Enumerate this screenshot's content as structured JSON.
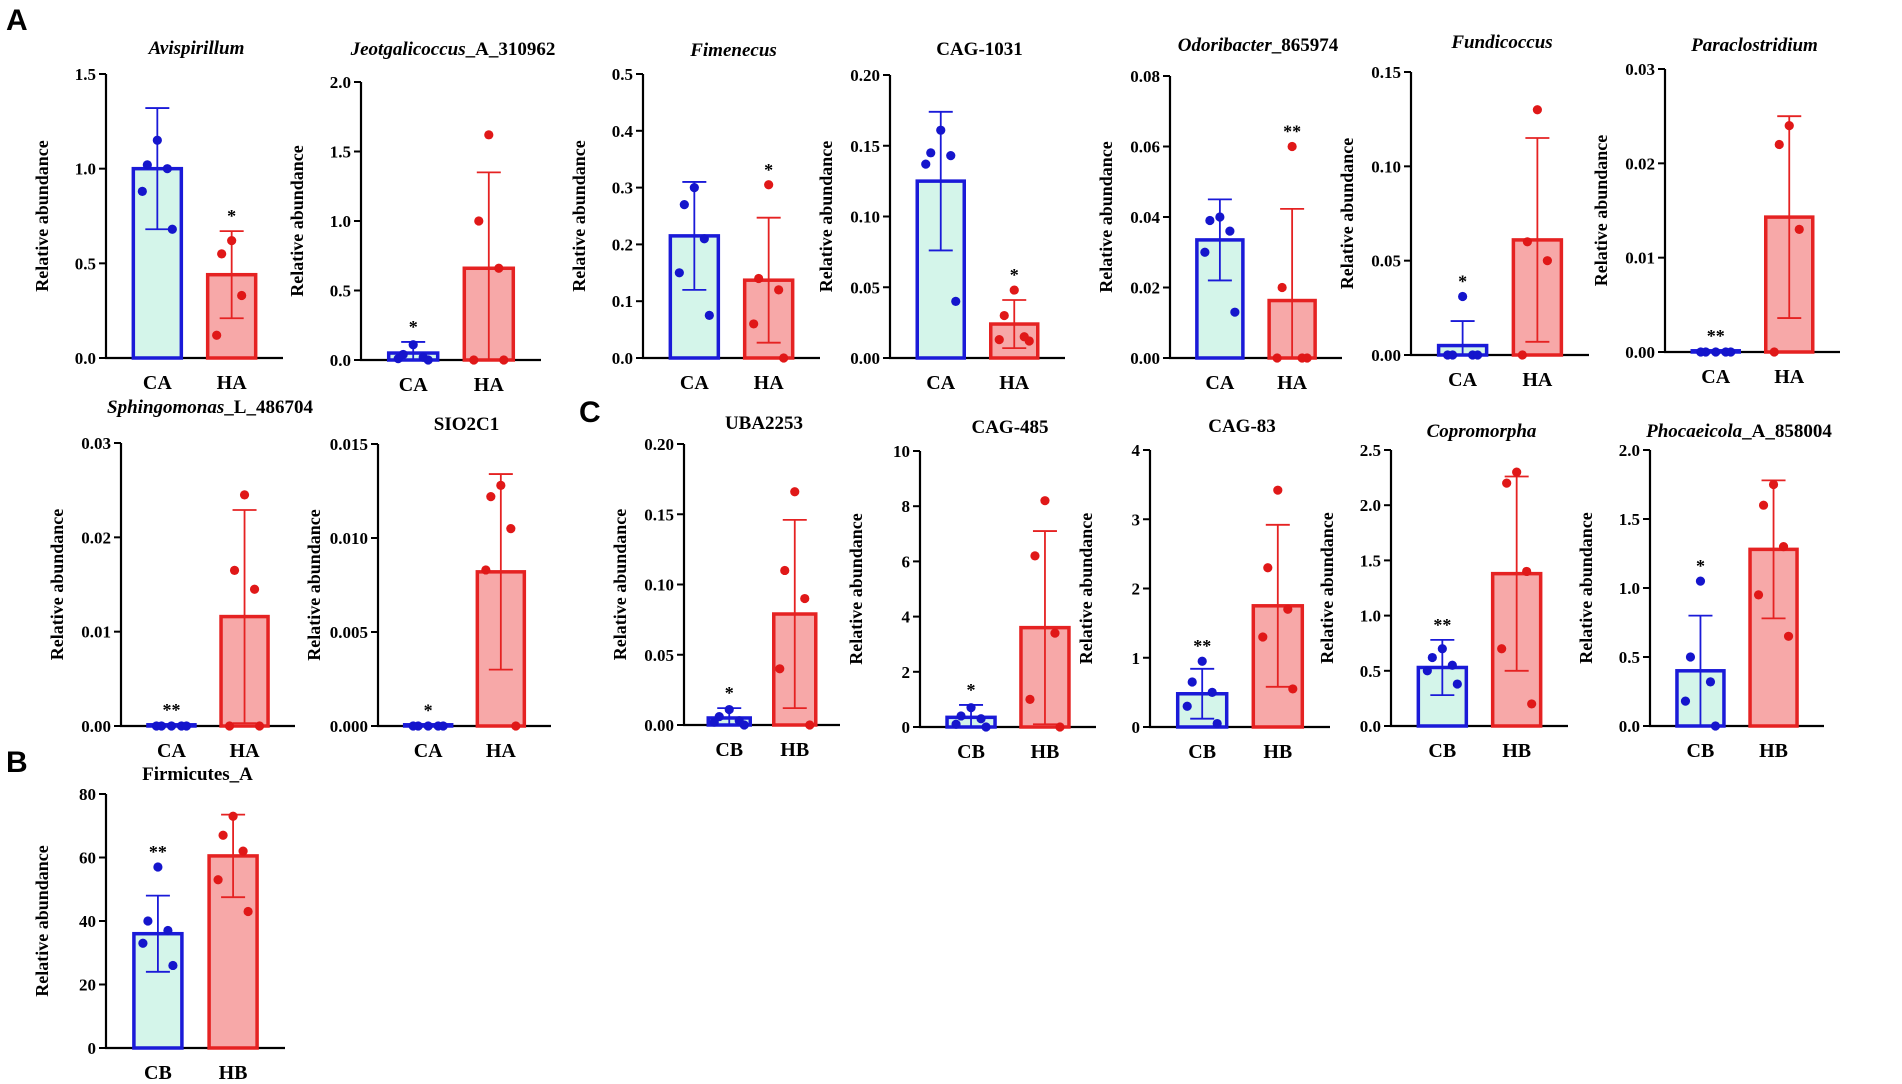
{
  "colors": {
    "control_fill": "#d4f5ea",
    "control_edge": "#1a1ad8",
    "control_dot": "#1515cc",
    "high_fill": "#f7a8a8",
    "high_edge": "#e52222",
    "high_dot": "#e01818",
    "axis": "#000000"
  },
  "panel_labels": {
    "A": "A",
    "B": "B",
    "C": "C"
  },
  "y_axis_label": "Relative abundance",
  "chart_data": [
    {
      "type": "bar",
      "panel": "A",
      "title": "Avispirillum",
      "title_italic": true,
      "categories": [
        "CA",
        "HA"
      ],
      "ylim": [
        0,
        1.5
      ],
      "yticks": [
        "0.0",
        "0.5",
        "1.0",
        "1.5"
      ],
      "series": [
        {
          "name": "CA",
          "mean": 1.0,
          "sd": 0.32,
          "points": [
            1.15,
            1.02,
            1.0,
            0.88,
            0.68
          ],
          "sig": ""
        },
        {
          "name": "HA",
          "mean": 0.44,
          "sd": 0.23,
          "points": [
            0.62,
            0.55,
            0.33,
            0.12
          ],
          "sig": "*"
        }
      ]
    },
    {
      "type": "bar",
      "panel": "A",
      "title": "Jeotgalicoccus_A_310962",
      "title_italic": true,
      "title_italic_part": "Jeotgalicoccus",
      "title_rest": "_A_310962",
      "categories": [
        "CA",
        "HA"
      ],
      "ylim": [
        0,
        2.0
      ],
      "yticks": [
        "0.0",
        "0.5",
        "1.0",
        "1.5",
        "2.0"
      ],
      "series": [
        {
          "name": "CA",
          "mean": 0.05,
          "sd": 0.08,
          "points": [
            0.11,
            0.04,
            0.02,
            0.01,
            0.0
          ],
          "sig": "*"
        },
        {
          "name": "HA",
          "mean": 0.66,
          "sd": 0.69,
          "points": [
            1.62,
            1.0,
            0.66,
            0.0,
            0.0
          ],
          "sig": ""
        }
      ]
    },
    {
      "type": "bar",
      "panel": "A",
      "title": "Fimenecus",
      "title_italic": true,
      "categories": [
        "CA",
        "HA"
      ],
      "ylim": [
        0,
        0.5
      ],
      "yticks": [
        "0.0",
        "0.1",
        "0.2",
        "0.3",
        "0.4",
        "0.5"
      ],
      "series": [
        {
          "name": "CA",
          "mean": 0.215,
          "sd": 0.095,
          "points": [
            0.3,
            0.27,
            0.21,
            0.15,
            0.075
          ],
          "sig": ""
        },
        {
          "name": "HA",
          "mean": 0.137,
          "sd": 0.11,
          "points": [
            0.305,
            0.14,
            0.12,
            0.06,
            0.0
          ],
          "sig": "*"
        }
      ]
    },
    {
      "type": "bar",
      "panel": "A",
      "title": "CAG-1031",
      "title_italic": false,
      "categories": [
        "CA",
        "HA"
      ],
      "ylim": [
        0,
        0.2
      ],
      "yticks": [
        "0.00",
        "0.05",
        "0.10",
        "0.15",
        "0.20"
      ],
      "series": [
        {
          "name": "CA",
          "mean": 0.125,
          "sd": 0.049,
          "points": [
            0.161,
            0.145,
            0.143,
            0.137,
            0.04
          ],
          "sig": ""
        },
        {
          "name": "HA",
          "mean": 0.024,
          "sd": 0.017,
          "points": [
            0.048,
            0.03,
            0.015,
            0.013,
            0.012
          ],
          "sig": "*"
        }
      ]
    },
    {
      "type": "bar",
      "panel": "A",
      "title": "Odoribacter_865974",
      "title_italic": true,
      "title_italic_part": "Odoribacter",
      "title_rest": "_865974",
      "categories": [
        "CA",
        "HA"
      ],
      "ylim": [
        0,
        0.08
      ],
      "yticks": [
        "0.00",
        "0.02",
        "0.04",
        "0.06",
        "0.08"
      ],
      "series": [
        {
          "name": "CA",
          "mean": 0.0335,
          "sd": 0.0115,
          "points": [
            0.04,
            0.039,
            0.036,
            0.03,
            0.013
          ],
          "sig": ""
        },
        {
          "name": "HA",
          "mean": 0.0163,
          "sd": 0.026,
          "points": [
            0.06,
            0.02,
            0.0,
            0.0,
            0.0
          ],
          "sig": "**"
        }
      ]
    },
    {
      "type": "bar",
      "panel": "A",
      "title": "Fundicoccus",
      "title_italic": true,
      "categories": [
        "CA",
        "HA"
      ],
      "ylim": [
        0,
        0.15
      ],
      "yticks": [
        "0.00",
        "0.05",
        "0.10",
        "0.15"
      ],
      "series": [
        {
          "name": "CA",
          "mean": 0.005,
          "sd": 0.013,
          "points": [
            0.031,
            0.0,
            0.0,
            0.0,
            0.0
          ],
          "sig": "*"
        },
        {
          "name": "HA",
          "mean": 0.061,
          "sd": 0.054,
          "points": [
            0.13,
            0.06,
            0.05,
            0.0
          ],
          "sig": ""
        }
      ]
    },
    {
      "type": "bar",
      "panel": "A",
      "title": "Paraclostridium",
      "title_italic": true,
      "categories": [
        "CA",
        "HA"
      ],
      "ylim": [
        0,
        0.03
      ],
      "yticks": [
        "0.00",
        "0.01",
        "0.02",
        "0.03"
      ],
      "series": [
        {
          "name": "CA",
          "mean": 0.0001,
          "sd": 0.0,
          "points": [
            0.0,
            0.0,
            0.0,
            0.0,
            0.0
          ],
          "sig": "**"
        },
        {
          "name": "HA",
          "mean": 0.0143,
          "sd": 0.0107,
          "points": [
            0.024,
            0.022,
            0.013,
            0.0
          ],
          "sig": ""
        }
      ]
    },
    {
      "type": "bar",
      "panel": "A",
      "title": "Sphingomonas_L_486704",
      "title_italic": true,
      "title_italic_part": "Sphingomonas",
      "title_rest": "_L_486704",
      "categories": [
        "CA",
        "HA"
      ],
      "ylim": [
        0,
        0.03
      ],
      "yticks": [
        "0.00",
        "0.01",
        "0.02",
        "0.03"
      ],
      "series": [
        {
          "name": "CA",
          "mean": 0.0001,
          "sd": 0.0,
          "points": [
            0.0,
            0.0,
            0.0,
            0.0,
            0.0
          ],
          "sig": "**"
        },
        {
          "name": "HA",
          "mean": 0.0116,
          "sd": 0.0113,
          "points": [
            0.0245,
            0.0165,
            0.0145,
            0.0,
            0.0
          ],
          "sig": ""
        }
      ]
    },
    {
      "type": "bar",
      "panel": "A",
      "title": "SIO2C1",
      "title_italic": false,
      "categories": [
        "CA",
        "HA"
      ],
      "ylim": [
        0,
        0.015
      ],
      "yticks": [
        "0.000",
        "0.005",
        "0.010",
        "0.015"
      ],
      "series": [
        {
          "name": "CA",
          "mean": 3e-05,
          "sd": 0.0,
          "points": [
            0.0,
            0.0,
            0.0,
            0.0,
            0.0
          ],
          "sig": "*"
        },
        {
          "name": "HA",
          "mean": 0.0082,
          "sd": 0.0052,
          "points": [
            0.0128,
            0.0122,
            0.0105,
            0.0083,
            0.0
          ],
          "sig": ""
        }
      ]
    },
    {
      "type": "bar",
      "panel": "B",
      "title": "Firmicutes_A",
      "title_italic": false,
      "categories": [
        "CB",
        "HB"
      ],
      "ylim": [
        0,
        80
      ],
      "yticks": [
        "0",
        "20",
        "40",
        "60",
        "80"
      ],
      "series": [
        {
          "name": "CB",
          "mean": 36,
          "sd": 12,
          "points": [
            57,
            40,
            37,
            33,
            26
          ],
          "sig": "**"
        },
        {
          "name": "HB",
          "mean": 60.5,
          "sd": 13,
          "points": [
            73,
            67,
            62,
            53,
            43
          ],
          "sig": ""
        }
      ]
    },
    {
      "type": "bar",
      "panel": "C",
      "title": "UBA2253",
      "title_italic": false,
      "categories": [
        "CB",
        "HB"
      ],
      "ylim": [
        0,
        0.2
      ],
      "yticks": [
        "0.00",
        "0.05",
        "0.10",
        "0.15",
        "0.20"
      ],
      "series": [
        {
          "name": "CB",
          "mean": 0.005,
          "sd": 0.007,
          "points": [
            0.011,
            0.006,
            0.003,
            0.002,
            0.0
          ],
          "sig": "*"
        },
        {
          "name": "HB",
          "mean": 0.079,
          "sd": 0.067,
          "points": [
            0.166,
            0.11,
            0.09,
            0.04,
            0.0
          ],
          "sig": ""
        }
      ]
    },
    {
      "type": "bar",
      "panel": "C",
      "title": "CAG-485",
      "title_italic": false,
      "categories": [
        "CB",
        "HB"
      ],
      "ylim": [
        0,
        10
      ],
      "yticks": [
        "0",
        "2",
        "4",
        "6",
        "8",
        "10"
      ],
      "series": [
        {
          "name": "CB",
          "mean": 0.35,
          "sd": 0.45,
          "points": [
            0.7,
            0.4,
            0.3,
            0.1,
            0.0
          ],
          "sig": "*"
        },
        {
          "name": "HB",
          "mean": 3.6,
          "sd": 3.5,
          "points": [
            8.2,
            6.2,
            3.4,
            1.0,
            0.0
          ],
          "sig": ""
        }
      ]
    },
    {
      "type": "bar",
      "panel": "C",
      "title": "CAG-83",
      "title_italic": false,
      "categories": [
        "CB",
        "HB"
      ],
      "ylim": [
        0,
        4
      ],
      "yticks": [
        "0",
        "1",
        "2",
        "3",
        "4"
      ],
      "series": [
        {
          "name": "CB",
          "mean": 0.48,
          "sd": 0.36,
          "points": [
            0.95,
            0.65,
            0.5,
            0.3,
            0.05
          ],
          "sig": "**"
        },
        {
          "name": "HB",
          "mean": 1.75,
          "sd": 1.17,
          "points": [
            3.42,
            2.3,
            1.7,
            1.3,
            0.55
          ],
          "sig": ""
        }
      ]
    },
    {
      "type": "bar",
      "panel": "C",
      "title": "Copromorpha",
      "title_italic": true,
      "categories": [
        "CB",
        "HB"
      ],
      "ylim": [
        0,
        2.5
      ],
      "yticks": [
        "0.0",
        "0.5",
        "1.0",
        "1.5",
        "2.0",
        "2.5"
      ],
      "series": [
        {
          "name": "CB",
          "mean": 0.53,
          "sd": 0.25,
          "points": [
            0.7,
            0.62,
            0.55,
            0.5,
            0.38
          ],
          "sig": "**"
        },
        {
          "name": "HB",
          "mean": 1.38,
          "sd": 0.88,
          "points": [
            2.3,
            2.2,
            1.4,
            0.7,
            0.2
          ],
          "sig": ""
        }
      ]
    },
    {
      "type": "bar",
      "panel": "C",
      "title": "Phocaeicola_A_858004",
      "title_italic": true,
      "title_italic_part": "Phocaeicola",
      "title_rest": "_A_858004",
      "categories": [
        "CB",
        "HB"
      ],
      "ylim": [
        0,
        2.0
      ],
      "yticks": [
        "0.0",
        "0.5",
        "1.0",
        "1.5",
        "2.0"
      ],
      "series": [
        {
          "name": "CB",
          "mean": 0.4,
          "sd": 0.4,
          "points": [
            1.05,
            0.5,
            0.32,
            0.18,
            0.0
          ],
          "sig": "*"
        },
        {
          "name": "HB",
          "mean": 1.28,
          "sd": 0.5,
          "points": [
            1.75,
            1.6,
            1.3,
            0.95,
            0.65
          ],
          "sig": ""
        }
      ]
    }
  ]
}
